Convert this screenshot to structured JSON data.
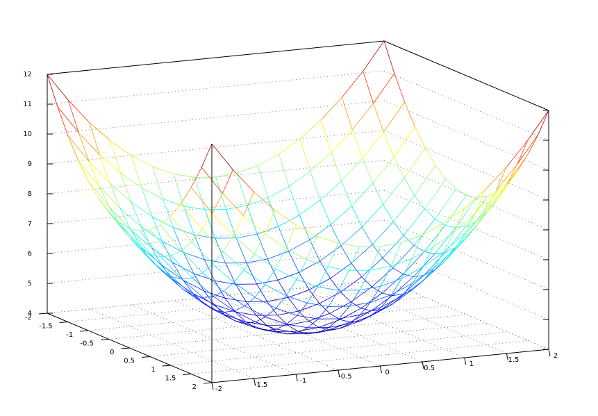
{
  "chart_data": {
    "type": "surface",
    "colormap": "jet",
    "grid": true,
    "x": [
      -2,
      -1.75,
      -1.5,
      -1.25,
      -1,
      -0.75,
      -0.5,
      -0.25,
      0,
      0.25,
      0.5,
      0.75,
      1,
      1.25,
      1.5,
      1.75,
      2
    ],
    "y": [
      -2,
      -1.75,
      -1.5,
      -1.25,
      -1,
      -0.75,
      -0.5,
      -0.25,
      0,
      0.25,
      0.5,
      0.75,
      1,
      1.25,
      1.5,
      1.75,
      2
    ],
    "z": [
      [
        12,
        11.0625,
        10.25,
        9.5625,
        9,
        8.5625,
        8.25,
        8.0625,
        8,
        8.0625,
        8.25,
        8.5625,
        9,
        9.5625,
        10.25,
        11.0625,
        12
      ],
      [
        11.0625,
        10.125,
        9.3125,
        8.625,
        8.0625,
        7.625,
        7.3125,
        7.125,
        7.0625,
        7.125,
        7.3125,
        7.625,
        8.0625,
        8.625,
        9.3125,
        10.125,
        11.0625
      ],
      [
        10.25,
        9.3125,
        8.5,
        7.8125,
        7.25,
        6.8125,
        6.5,
        6.3125,
        6.25,
        6.3125,
        6.5,
        6.8125,
        7.25,
        7.8125,
        8.5,
        9.3125,
        10.25
      ],
      [
        9.5625,
        8.625,
        7.8125,
        7.125,
        6.5625,
        6.125,
        5.8125,
        5.625,
        5.5625,
        5.625,
        5.8125,
        6.125,
        6.5625,
        7.125,
        7.8125,
        8.625,
        9.5625
      ],
      [
        9,
        8.0625,
        7.25,
        6.5625,
        6,
        5.5625,
        5.25,
        5.0625,
        5,
        5.0625,
        5.25,
        5.5625,
        6,
        6.5625,
        7.25,
        8.0625,
        9
      ],
      [
        8.5625,
        7.625,
        6.8125,
        6.125,
        5.5625,
        5.125,
        4.8125,
        4.625,
        4.5625,
        4.625,
        4.8125,
        5.125,
        5.5625,
        6.125,
        6.8125,
        7.625,
        8.5625
      ],
      [
        8.25,
        7.3125,
        6.5,
        5.8125,
        5.25,
        4.8125,
        4.5,
        4.3125,
        4.25,
        4.3125,
        4.5,
        4.8125,
        5.25,
        5.8125,
        6.5,
        7.3125,
        8.25
      ],
      [
        8.0625,
        7.125,
        6.3125,
        5.625,
        5.0625,
        4.625,
        4.3125,
        4.125,
        4.0625,
        4.125,
        4.3125,
        4.625,
        5.0625,
        5.625,
        6.3125,
        7.125,
        8.0625
      ],
      [
        8,
        7.0625,
        6.25,
        5.5625,
        5,
        4.5625,
        4.25,
        4.0625,
        4,
        4.0625,
        4.25,
        4.5625,
        5,
        5.5625,
        6.25,
        7.0625,
        8
      ],
      [
        8.0625,
        7.125,
        6.3125,
        5.625,
        5.0625,
        4.625,
        4.3125,
        4.125,
        4.0625,
        4.125,
        4.3125,
        4.625,
        5.0625,
        5.625,
        6.3125,
        7.125,
        8.0625
      ],
      [
        8.25,
        7.3125,
        6.5,
        5.8125,
        5.25,
        4.8125,
        4.5,
        4.3125,
        4.25,
        4.3125,
        4.5,
        4.8125,
        5.25,
        5.8125,
        6.5,
        7.3125,
        8.25
      ],
      [
        8.5625,
        7.625,
        6.8125,
        6.125,
        5.5625,
        5.125,
        4.8125,
        4.625,
        4.5625,
        4.625,
        4.8125,
        5.125,
        5.5625,
        6.125,
        6.8125,
        7.625,
        8.5625
      ],
      [
        9,
        8.0625,
        7.25,
        6.5625,
        6,
        5.5625,
        5.25,
        5.0625,
        5,
        5.0625,
        5.25,
        5.5625,
        6,
        6.5625,
        7.25,
        8.0625,
        9
      ],
      [
        9.5625,
        8.625,
        7.8125,
        7.125,
        6.5625,
        6.125,
        5.8125,
        5.625,
        5.5625,
        5.625,
        5.8125,
        6.125,
        6.5625,
        7.125,
        7.8125,
        8.625,
        9.5625
      ],
      [
        10.25,
        9.3125,
        8.5,
        7.8125,
        7.25,
        6.8125,
        6.5,
        6.3125,
        6.25,
        6.3125,
        6.5,
        6.8125,
        7.25,
        7.8125,
        8.5,
        9.3125,
        10.25
      ],
      [
        11.0625,
        10.125,
        9.3125,
        8.625,
        8.0625,
        7.625,
        7.3125,
        7.125,
        7.0625,
        7.125,
        7.3125,
        7.625,
        8.0625,
        8.625,
        9.3125,
        10.125,
        11.0625
      ],
      [
        12,
        11.0625,
        10.25,
        9.5625,
        9,
        8.5625,
        8.25,
        8.0625,
        8,
        8.0625,
        8.25,
        8.5625,
        9,
        9.5625,
        10.25,
        11.0625,
        12
      ]
    ],
    "xlim": [
      -2,
      2
    ],
    "ylim": [
      -2,
      2
    ],
    "zlim": [
      4,
      12
    ],
    "xticks": [
      -2,
      -1.5,
      -1,
      -0.5,
      0,
      0.5,
      1,
      1.5,
      2
    ],
    "yticks": [
      -2,
      -1.5,
      -1,
      -0.5,
      0,
      0.5,
      1,
      1.5,
      2
    ],
    "zticks": [
      4,
      5,
      6,
      7,
      8,
      9,
      10,
      11,
      12
    ]
  }
}
